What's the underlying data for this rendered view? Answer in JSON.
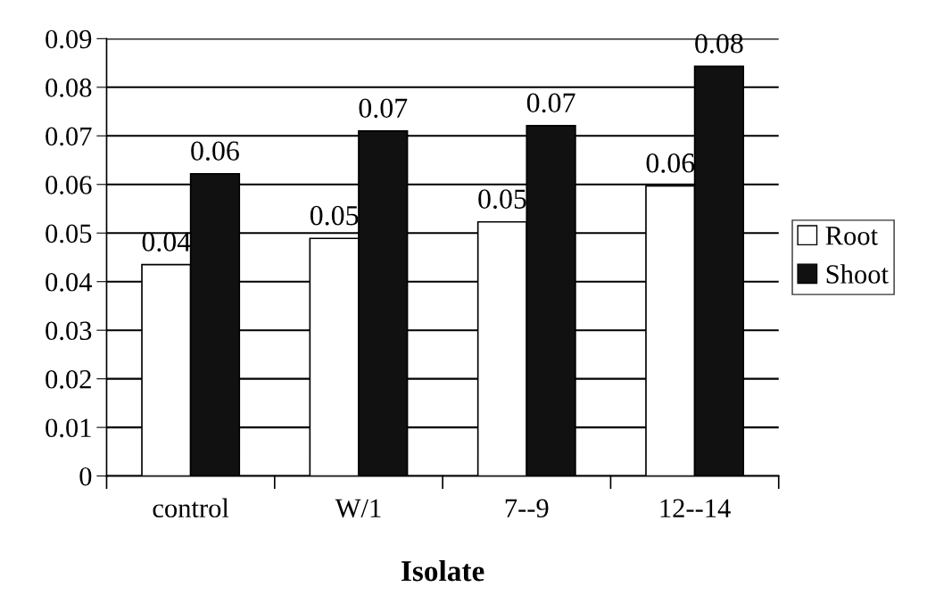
{
  "chart_data": {
    "type": "bar",
    "xlabel": "Isolate",
    "categories": [
      "control",
      "W/1",
      "7--9",
      "12--14"
    ],
    "series": [
      {
        "name": "Root",
        "color": "#ffffff",
        "values": [
          0.0435,
          0.0489,
          0.0523,
          0.0597
        ],
        "value_labels": [
          "0.04",
          "0.05",
          "0.05",
          "0.06"
        ]
      },
      {
        "name": "Shoot",
        "color": "#111111",
        "values": [
          0.0622,
          0.071,
          0.0721,
          0.0843
        ],
        "value_labels": [
          "0.06",
          "0.07",
          "0.07",
          "0.08"
        ]
      }
    ],
    "ylim": [
      0,
      0.09
    ],
    "yticks": [
      {
        "value": 0,
        "label": "0"
      },
      0.01,
      0.02,
      0.03,
      0.04,
      0.05,
      0.06,
      0.07,
      0.08,
      0.09
    ],
    "grid": "y",
    "legend": "right"
  }
}
